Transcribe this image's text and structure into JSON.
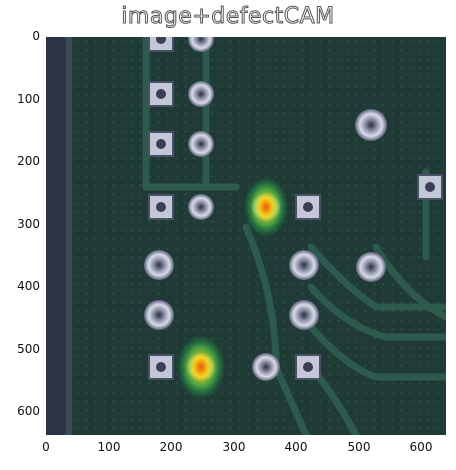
{
  "title": "image+defectCAM",
  "y_ticks": [
    "0",
    "100",
    "200",
    "300",
    "400",
    "500",
    "600"
  ],
  "x_ticks": [
    "0",
    "100",
    "200",
    "300",
    "400",
    "500",
    "600"
  ],
  "colors": {
    "pcb_base": "#1f3a33",
    "pad": "#c8c8d6",
    "cam_hot": "#ffcc33"
  }
}
